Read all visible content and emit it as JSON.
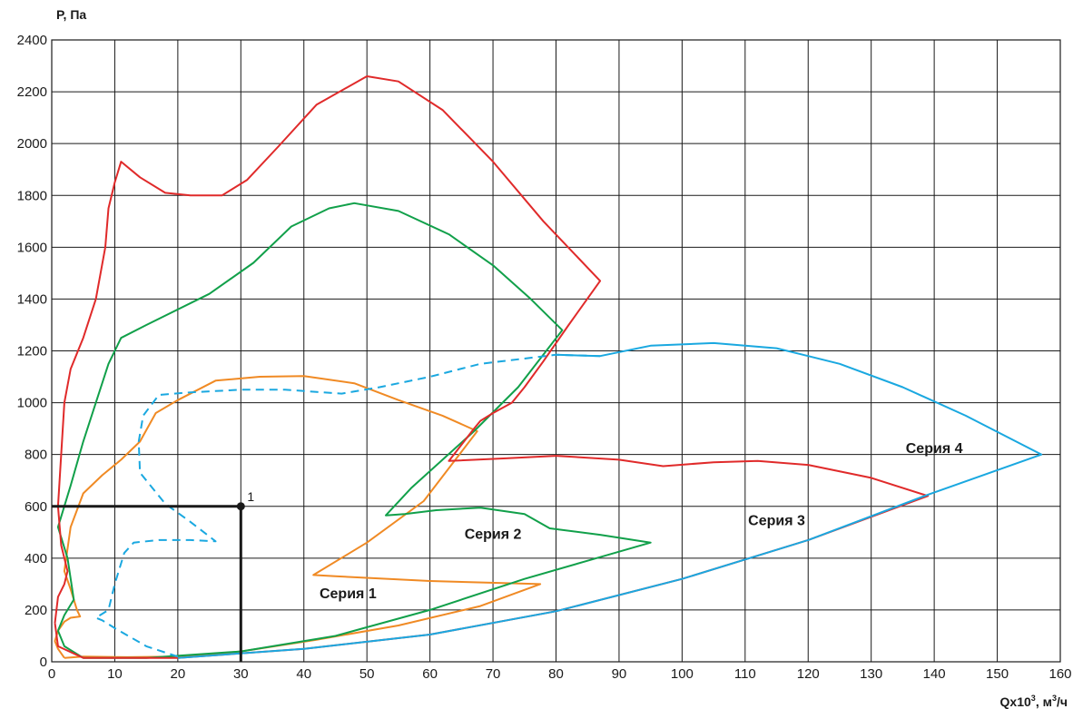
{
  "chart_data": {
    "type": "line",
    "ylabel": "P, Па",
    "xlabel_main": "Qx10",
    "xlabel_sup": "3",
    "xlabel_rest": ", м",
    "xlabel_sup2": "3",
    "xlabel_end": "/ч",
    "xlim": [
      0,
      160
    ],
    "ylim": [
      0,
      2400
    ],
    "x_ticks": [
      0,
      10,
      20,
      30,
      40,
      50,
      60,
      70,
      80,
      90,
      100,
      110,
      120,
      130,
      140,
      150,
      160
    ],
    "y_ticks": [
      0,
      200,
      400,
      600,
      800,
      1000,
      1200,
      1400,
      1600,
      1800,
      2000,
      2200,
      2400
    ],
    "grid": true,
    "colors": {
      "series1": "#f08a24",
      "series2": "#11a04a",
      "series3": "#e02a2a",
      "series4": "#1aa8e0",
      "operating": "#1a1a1a"
    },
    "series": [
      {
        "name": "Серия 1",
        "color": "#f08a24",
        "dashed": false,
        "label_at": [
          47,
          245
        ],
        "points": [
          [
            2,
            15
          ],
          [
            5,
            20
          ],
          [
            12,
            18
          ],
          [
            20,
            20
          ],
          [
            30,
            40
          ],
          [
            42,
            85
          ],
          [
            55,
            140
          ],
          [
            68,
            215
          ],
          [
            77.5,
            300
          ],
          [
            60,
            312
          ],
          [
            45,
            330
          ],
          [
            41.5,
            335
          ],
          [
            50,
            460
          ],
          [
            59,
            620
          ],
          [
            67.5,
            890
          ],
          [
            62,
            950
          ],
          [
            55,
            1010
          ],
          [
            48,
            1075
          ],
          [
            40,
            1103
          ],
          [
            33,
            1100
          ],
          [
            26,
            1085
          ],
          [
            20,
            1010
          ],
          [
            16.5,
            960
          ],
          [
            14,
            850
          ],
          [
            11,
            780
          ],
          [
            8,
            720
          ],
          [
            5,
            650
          ],
          [
            3,
            520
          ],
          [
            2,
            350
          ],
          [
            3,
            280
          ],
          [
            4,
            200
          ],
          [
            4.5,
            175
          ],
          [
            3,
            170
          ],
          [
            2,
            155
          ],
          [
            1,
            120
          ],
          [
            0.5,
            80
          ],
          [
            1,
            50
          ],
          [
            2,
            15
          ]
        ]
      },
      {
        "name": "Серия 2",
        "color": "#11a04a",
        "dashed": false,
        "label_at": [
          70,
          475
        ],
        "points": [
          [
            1,
            120
          ],
          [
            2,
            180
          ],
          [
            3.5,
            240
          ],
          [
            2.5,
            400
          ],
          [
            1,
            520
          ],
          [
            3,
            680
          ],
          [
            5,
            850
          ],
          [
            7,
            1000
          ],
          [
            9,
            1150
          ],
          [
            11,
            1250
          ],
          [
            15,
            1300
          ],
          [
            25,
            1420
          ],
          [
            32,
            1540
          ],
          [
            38,
            1680
          ],
          [
            44,
            1750
          ],
          [
            48,
            1770
          ],
          [
            55,
            1740
          ],
          [
            63,
            1650
          ],
          [
            70,
            1530
          ],
          [
            76,
            1400
          ],
          [
            81,
            1280
          ],
          [
            74,
            1060
          ],
          [
            67,
            890
          ],
          [
            62,
            780
          ],
          [
            57,
            670
          ],
          [
            53,
            565
          ],
          [
            56,
            570
          ],
          [
            61,
            585
          ],
          [
            68,
            595
          ],
          [
            75,
            570
          ],
          [
            79,
            515
          ],
          [
            87,
            490
          ],
          [
            95,
            460
          ],
          [
            85,
            390
          ],
          [
            75,
            320
          ],
          [
            60,
            200
          ],
          [
            45,
            100
          ],
          [
            30,
            40
          ],
          [
            15,
            15
          ],
          [
            5,
            15
          ],
          [
            2,
            60
          ],
          [
            1,
            120
          ]
        ]
      },
      {
        "name": "Серия 3",
        "color": "#e02a2a",
        "dashed": false,
        "label_at": [
          115,
          528
        ],
        "points": [
          [
            0.5,
            150
          ],
          [
            1,
            250
          ],
          [
            2,
            300
          ],
          [
            2.5,
            350
          ],
          [
            1.5,
            450
          ],
          [
            1,
            600
          ],
          [
            1.5,
            800
          ],
          [
            2,
            1000
          ],
          [
            3,
            1130
          ],
          [
            5,
            1250
          ],
          [
            7,
            1400
          ],
          [
            8.5,
            1600
          ],
          [
            9,
            1750
          ],
          [
            10,
            1850
          ],
          [
            11,
            1930
          ],
          [
            14,
            1870
          ],
          [
            18,
            1810
          ],
          [
            22,
            1800
          ],
          [
            27,
            1800
          ],
          [
            31,
            1860
          ],
          [
            36,
            1990
          ],
          [
            42,
            2150
          ],
          [
            50,
            2260
          ],
          [
            55,
            2240
          ],
          [
            62,
            2130
          ],
          [
            70,
            1930
          ],
          [
            78,
            1700
          ],
          [
            87,
            1470
          ],
          [
            82,
            1300
          ],
          [
            78,
            1160
          ],
          [
            75,
            1060
          ],
          [
            73,
            1000
          ],
          [
            70,
            960
          ],
          [
            68,
            930
          ],
          [
            67,
            900
          ],
          [
            63,
            775
          ],
          [
            72,
            785
          ],
          [
            80,
            795
          ],
          [
            90,
            780
          ],
          [
            97,
            755
          ],
          [
            105,
            770
          ],
          [
            112,
            775
          ],
          [
            120,
            760
          ],
          [
            130,
            710
          ],
          [
            139,
            640
          ],
          [
            120,
            470
          ],
          [
            100,
            320
          ],
          [
            80,
            195
          ],
          [
            60,
            105
          ],
          [
            40,
            50
          ],
          [
            20,
            15
          ],
          [
            5,
            15
          ],
          [
            1,
            60
          ],
          [
            0.5,
            150
          ]
        ]
      },
      {
        "name": "Серия 4",
        "color": "#1aa8e0",
        "dashed": true,
        "label_at": [
          140,
          805
        ],
        "points": [
          [
            20,
            20
          ],
          [
            15,
            60
          ],
          [
            10,
            130
          ],
          [
            8,
            160
          ],
          [
            7,
            170
          ],
          [
            9,
            200
          ],
          [
            10,
            300
          ],
          [
            11.5,
            420
          ],
          [
            13,
            460
          ],
          [
            17,
            470
          ],
          [
            22,
            470
          ],
          [
            26,
            465
          ],
          [
            22,
            540
          ],
          [
            18,
            610
          ],
          [
            14,
            730
          ],
          [
            13.8,
            850
          ],
          [
            14.5,
            950
          ],
          [
            17,
            1030
          ],
          [
            22,
            1040
          ],
          [
            30,
            1050
          ],
          [
            37,
            1050
          ],
          [
            46,
            1035
          ],
          [
            52,
            1060
          ],
          [
            60,
            1100
          ],
          [
            68,
            1150
          ],
          [
            80,
            1185
          ],
          [
            87,
            1180
          ]
        ]
      },
      {
        "name": "Серия 4",
        "color": "#1aa8e0",
        "dashed": false,
        "label_at": null,
        "points": [
          [
            80,
            1185
          ],
          [
            87,
            1180
          ],
          [
            95,
            1220
          ],
          [
            105,
            1230
          ],
          [
            115,
            1210
          ],
          [
            125,
            1150
          ],
          [
            135,
            1060
          ],
          [
            145,
            950
          ],
          [
            157,
            800
          ],
          [
            139,
            645
          ],
          [
            120,
            470
          ],
          [
            100,
            320
          ],
          [
            80,
            195
          ],
          [
            60,
            105
          ],
          [
            40,
            50
          ],
          [
            20,
            15
          ]
        ]
      }
    ],
    "operating_point": {
      "x": 30,
      "y": 600,
      "label": "1"
    },
    "series_labels": [
      "Серия 1",
      "Серия 2",
      "Серия 3",
      "Серия 4"
    ]
  }
}
